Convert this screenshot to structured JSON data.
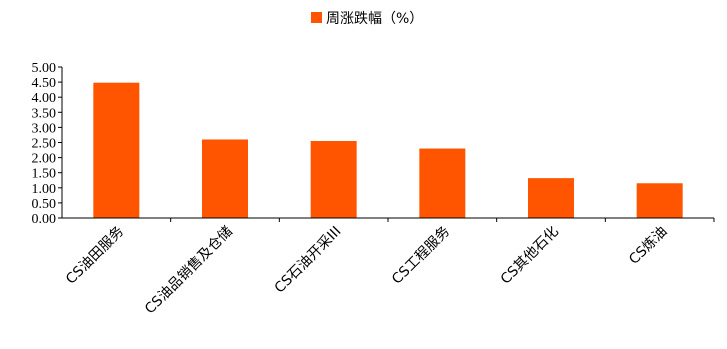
{
  "chart_data": {
    "type": "bar",
    "categories": [
      "CS油田服务",
      "CS油品销售及仓储",
      "CS石油开采III",
      "CS工程服务",
      "CS其他石化",
      "CS炼油"
    ],
    "series": [
      {
        "name": "周涨跌幅（%）",
        "values": [
          4.48,
          2.6,
          2.55,
          2.3,
          1.32,
          1.15
        ],
        "color": "#FF5500"
      }
    ],
    "ylim": [
      0,
      5
    ],
    "yticks": [
      "0.00",
      "0.50",
      "1.00",
      "1.50",
      "2.00",
      "2.50",
      "3.00",
      "3.50",
      "4.00",
      "4.50",
      "5.00"
    ],
    "grid": false,
    "legend_position": "top-center"
  }
}
